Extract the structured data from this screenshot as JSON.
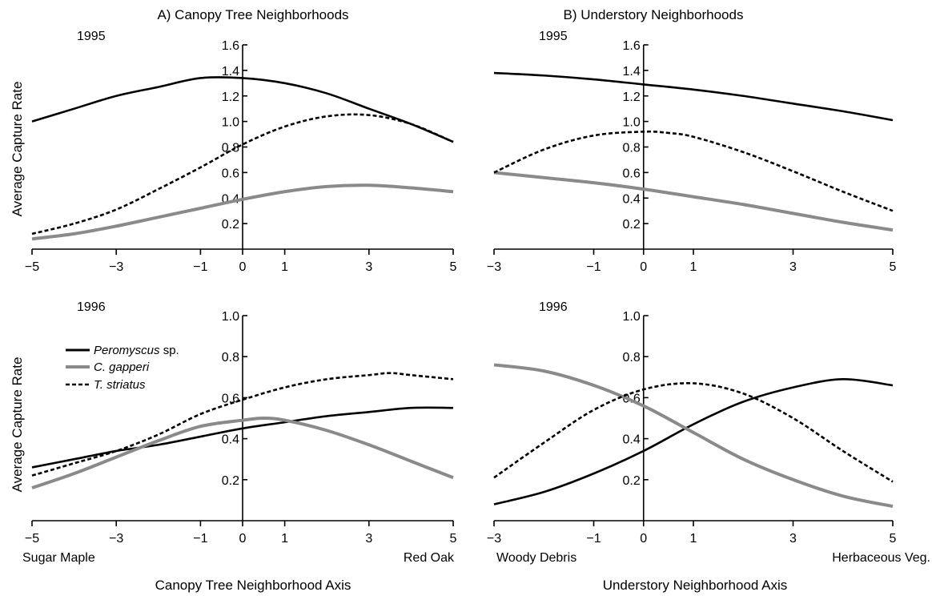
{
  "figure": {
    "column_titles": [
      "A) Canopy Tree Neighborhoods",
      "B) Understory Neighborhoods"
    ],
    "ylabel": "Average Capture Rate",
    "x_axis_titles": [
      "Canopy Tree Neighborhood Axis",
      "Understory Neighborhood Axis"
    ],
    "x_end_labels": [
      [
        "Sugar Maple",
        "Red Oak"
      ],
      [
        "Woody Debris",
        "Herbaceous Veg."
      ]
    ]
  },
  "legend": {
    "entries": [
      {
        "name": "Peromyscus",
        "suffix": " sp.",
        "style": "solid",
        "color": "#000000"
      },
      {
        "name": "C. gapperi",
        "suffix": "",
        "style": "solid",
        "color": "#8a8a8a"
      },
      {
        "name": "T. striatus",
        "suffix": "",
        "style": "dashed",
        "color": "#000000"
      }
    ]
  },
  "chart_data": [
    {
      "type": "line",
      "year": "1995",
      "xlim": [
        -5,
        5
      ],
      "ylim": [
        0,
        1.6
      ],
      "xticks": [
        -5,
        -3,
        -1,
        0,
        1,
        3,
        5
      ],
      "yticks": [
        0.2,
        0.4,
        0.6,
        0.8,
        1.0,
        1.2,
        1.4,
        1.6
      ],
      "series": [
        {
          "name": "Peromyscus sp.",
          "style": "solid",
          "color": "#000000",
          "x": [
            -5,
            -4,
            -3,
            -2,
            -1,
            0,
            1,
            2,
            3,
            4,
            5
          ],
          "y": [
            1.0,
            1.1,
            1.2,
            1.27,
            1.34,
            1.34,
            1.3,
            1.22,
            1.1,
            0.98,
            0.84
          ]
        },
        {
          "name": "C. gapperi",
          "style": "solid",
          "color": "#8a8a8a",
          "x": [
            -5,
            -4,
            -3,
            -2,
            -1,
            0,
            1,
            2,
            3,
            4,
            5
          ],
          "y": [
            0.08,
            0.12,
            0.18,
            0.25,
            0.32,
            0.39,
            0.45,
            0.49,
            0.5,
            0.48,
            0.45
          ]
        },
        {
          "name": "T. striatus",
          "style": "dashed",
          "color": "#000000",
          "x": [
            -5,
            -4,
            -3,
            -2,
            -1,
            0,
            1,
            2,
            3,
            4,
            5
          ],
          "y": [
            0.12,
            0.2,
            0.31,
            0.47,
            0.64,
            0.82,
            0.96,
            1.04,
            1.05,
            0.98,
            0.84
          ]
        }
      ]
    },
    {
      "type": "line",
      "year": "1995",
      "xlim": [
        -3,
        5
      ],
      "ylim": [
        0,
        1.6
      ],
      "xticks": [
        -3,
        -1,
        0,
        1,
        3,
        5
      ],
      "yticks": [
        0.2,
        0.4,
        0.6,
        0.8,
        1.0,
        1.2,
        1.4,
        1.6
      ],
      "series": [
        {
          "name": "Peromyscus sp.",
          "style": "solid",
          "color": "#000000",
          "x": [
            -3,
            -2,
            -1,
            0,
            1,
            2,
            3,
            4,
            5
          ],
          "y": [
            1.38,
            1.36,
            1.33,
            1.29,
            1.25,
            1.2,
            1.14,
            1.08,
            1.01
          ]
        },
        {
          "name": "C. gapperi",
          "style": "solid",
          "color": "#8a8a8a",
          "x": [
            -3,
            -2,
            -1,
            0,
            1,
            2,
            3,
            4,
            5
          ],
          "y": [
            0.6,
            0.56,
            0.52,
            0.47,
            0.41,
            0.35,
            0.28,
            0.21,
            0.15
          ]
        },
        {
          "name": "T. striatus",
          "style": "dashed",
          "color": "#000000",
          "x": [
            -3,
            -2,
            -1,
            0,
            0.5,
            1,
            2,
            3,
            4,
            5
          ],
          "y": [
            0.6,
            0.78,
            0.89,
            0.92,
            0.91,
            0.88,
            0.76,
            0.61,
            0.45,
            0.3
          ]
        }
      ]
    },
    {
      "type": "line",
      "year": "1996",
      "xlim": [
        -5,
        5
      ],
      "ylim": [
        0,
        1.0
      ],
      "xticks": [
        -5,
        -3,
        -1,
        0,
        1,
        3,
        5
      ],
      "yticks": [
        0.2,
        0.4,
        0.6,
        0.8,
        1.0
      ],
      "series": [
        {
          "name": "Peromyscus sp.",
          "style": "solid",
          "color": "#000000",
          "x": [
            -5,
            -4,
            -3,
            -2,
            -1,
            0,
            1,
            2,
            3,
            4,
            5
          ],
          "y": [
            0.26,
            0.3,
            0.34,
            0.37,
            0.41,
            0.45,
            0.48,
            0.51,
            0.53,
            0.55,
            0.55
          ]
        },
        {
          "name": "C. gapperi",
          "style": "solid",
          "color": "#8a8a8a",
          "x": [
            -5,
            -4,
            -3,
            -2,
            -1,
            0,
            0.5,
            1,
            2,
            3,
            4,
            5
          ],
          "y": [
            0.16,
            0.23,
            0.31,
            0.39,
            0.46,
            0.49,
            0.5,
            0.49,
            0.44,
            0.37,
            0.29,
            0.21
          ]
        },
        {
          "name": "T. striatus",
          "style": "dashed",
          "color": "#000000",
          "x": [
            -5,
            -4,
            -3,
            -2,
            -1,
            0,
            1,
            2,
            3,
            3.5,
            4,
            5
          ],
          "y": [
            0.22,
            0.28,
            0.34,
            0.42,
            0.52,
            0.59,
            0.65,
            0.69,
            0.71,
            0.72,
            0.71,
            0.69
          ]
        }
      ]
    },
    {
      "type": "line",
      "year": "1996",
      "xlim": [
        -3,
        5
      ],
      "ylim": [
        0,
        1.0
      ],
      "xticks": [
        -3,
        -1,
        0,
        1,
        3,
        5
      ],
      "yticks": [
        0.2,
        0.4,
        0.6,
        0.8,
        1.0
      ],
      "series": [
        {
          "name": "Peromyscus sp.",
          "style": "solid",
          "color": "#000000",
          "x": [
            -3,
            -2,
            -1,
            0,
            1,
            2,
            3,
            4,
            5
          ],
          "y": [
            0.08,
            0.14,
            0.23,
            0.34,
            0.47,
            0.58,
            0.65,
            0.69,
            0.66
          ]
        },
        {
          "name": "C. gapperi",
          "style": "solid",
          "color": "#8a8a8a",
          "x": [
            -3,
            -2,
            -1,
            0,
            1,
            2,
            3,
            4,
            5
          ],
          "y": [
            0.76,
            0.73,
            0.66,
            0.56,
            0.43,
            0.3,
            0.2,
            0.12,
            0.07
          ]
        },
        {
          "name": "T. striatus",
          "style": "dashed",
          "color": "#000000",
          "x": [
            -3,
            -2,
            -1,
            0,
            1,
            2,
            3,
            4,
            5
          ],
          "y": [
            0.21,
            0.38,
            0.54,
            0.64,
            0.67,
            0.62,
            0.5,
            0.34,
            0.19
          ]
        }
      ]
    }
  ]
}
